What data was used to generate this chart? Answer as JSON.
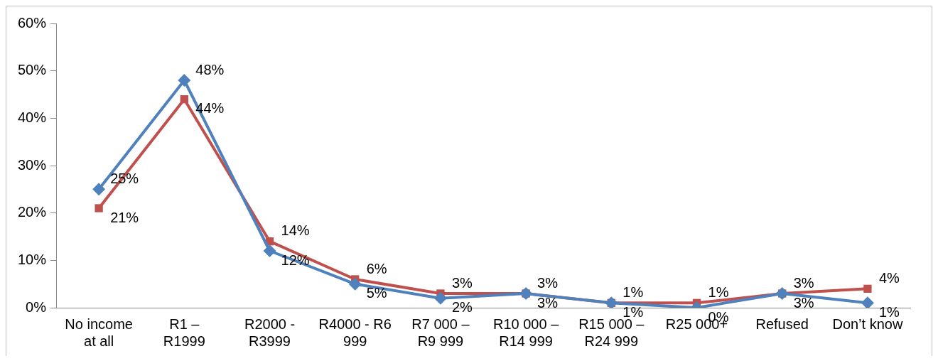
{
  "chart_data": {
    "type": "line",
    "categories": [
      "No income at all",
      "R1 – R1999",
      "R2000 - R3999",
      "R4000 - R6 999",
      "R7 000 – R9 999",
      "R10 000 – R14 999",
      "R15 000 – R24 999",
      "R25 000+",
      "Refused",
      "Don’t know"
    ],
    "series": [
      {
        "color": "#4f81bd",
        "marker": "diamond",
        "values": [
          25,
          48,
          12,
          5,
          2,
          3,
          1,
          0,
          3,
          1
        ],
        "value_labels": [
          "25%",
          "48%",
          "12%",
          "5%",
          "2%",
          "3%",
          "1%",
          "0%",
          "3%",
          "1%"
        ]
      },
      {
        "color": "#c0504d",
        "marker": "square",
        "values": [
          21,
          44,
          14,
          6,
          3,
          3,
          1,
          1,
          3,
          4
        ],
        "value_labels": [
          "21%",
          "44%",
          "14%",
          "6%",
          "3%",
          "3%",
          "1%",
          "1%",
          "3%",
          "4%"
        ]
      }
    ],
    "ylim": [
      0,
      60
    ],
    "yticks": [
      {
        "value": 0,
        "label": "0%"
      },
      {
        "value": 10,
        "label": "10%"
      },
      {
        "value": 20,
        "label": "20%"
      },
      {
        "value": 30,
        "label": "30%"
      },
      {
        "value": 40,
        "label": "40%"
      },
      {
        "value": 50,
        "label": "50%"
      },
      {
        "value": 60,
        "label": "60%"
      }
    ],
    "grid": false,
    "legend": false,
    "line_style": "solid"
  }
}
